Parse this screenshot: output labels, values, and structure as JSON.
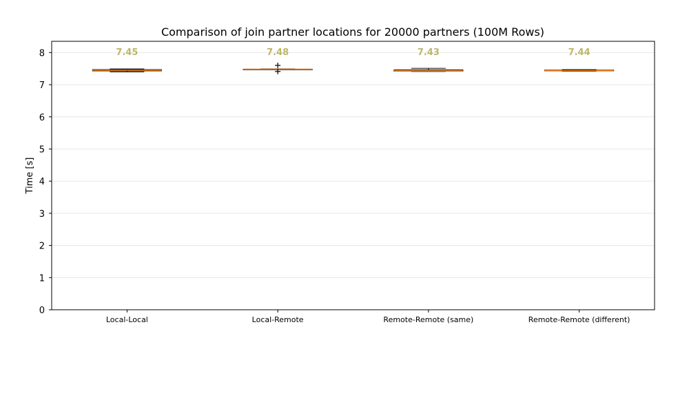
{
  "chart_data": {
    "type": "box",
    "title": "Comparison of join partner locations for 20000 partners (100M Rows)",
    "xlabel": "",
    "ylabel": "Time [s]",
    "ylim": [
      0,
      8.35
    ],
    "yticks": [
      "0",
      "1",
      "2",
      "3",
      "4",
      "5",
      "6",
      "7",
      "8"
    ],
    "grid": "horizontal",
    "categories": [
      "Local-Local",
      "Local-Remote",
      "Remote-Remote (same)",
      "Remote-Remote (different)"
    ],
    "median_labels": [
      "7.45",
      "7.48",
      "7.43",
      "7.44"
    ],
    "boxes": [
      {
        "whislo": 7.4,
        "q1": 7.43,
        "med": 7.45,
        "q3": 7.47,
        "whishi": 7.49,
        "fliers": []
      },
      {
        "whislo": 7.47,
        "q1": 7.475,
        "med": 7.48,
        "q3": 7.485,
        "whishi": 7.49,
        "fliers": [
          7.6,
          7.41
        ]
      },
      {
        "whislo": 7.41,
        "q1": 7.42,
        "med": 7.43,
        "q3": 7.46,
        "whishi": 7.51,
        "fliers": []
      },
      {
        "whislo": 7.42,
        "q1": 7.43,
        "med": 7.44,
        "q3": 7.455,
        "whishi": 7.47,
        "fliers": []
      }
    ],
    "colors": {
      "box": "#000000",
      "median": "#ff7f0e",
      "label": "#bdb76b",
      "grid": "#e6e6e6"
    }
  }
}
